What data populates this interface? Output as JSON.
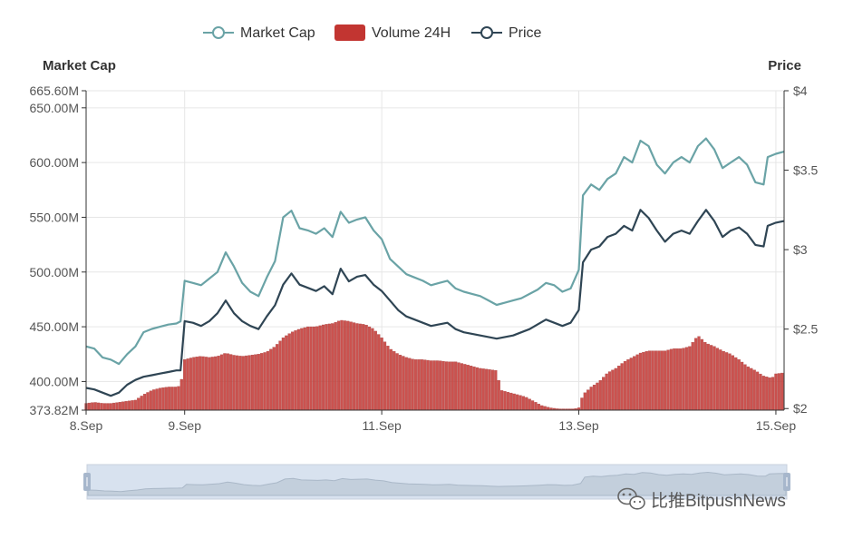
{
  "chart_data": {
    "type": "line",
    "title": "",
    "legend": {
      "placement": "top-center",
      "items": [
        {
          "name": "Market Cap",
          "kind": "line-circle",
          "color": "#6aa3a6"
        },
        {
          "name": "Volume 24H",
          "kind": "rect",
          "color": "#c23531"
        },
        {
          "name": "Price",
          "kind": "line-circle",
          "color": "#2f4554"
        }
      ]
    },
    "x_axis": {
      "unit": "hours since 8.Sep 00:00",
      "range": [
        0,
        170
      ],
      "ticks": [
        {
          "value": 0,
          "label": "8.Sep"
        },
        {
          "value": 24,
          "label": "9.Sep"
        },
        {
          "value": 72,
          "label": "11.Sep"
        },
        {
          "value": 120,
          "label": "13.Sep"
        },
        {
          "value": 168,
          "label": "15.Sep"
        }
      ]
    },
    "y_axis_left": {
      "name": "Market Cap",
      "range": [
        373.82,
        665.6
      ],
      "ticks": [
        {
          "value": 373.82,
          "label": "373.82M"
        },
        {
          "value": 400,
          "label": "400.00M"
        },
        {
          "value": 450,
          "label": "450.00M"
        },
        {
          "value": 500,
          "label": "500.00M"
        },
        {
          "value": 550,
          "label": "550.00M"
        },
        {
          "value": 600,
          "label": "600.00M"
        },
        {
          "value": 650,
          "label": "650.00M"
        },
        {
          "value": 665.6,
          "label": "665.60M"
        }
      ]
    },
    "y_axis_right": {
      "name": "Price",
      "range": [
        1.99,
        4.0
      ],
      "ticks": [
        {
          "value": 2,
          "label": "$2"
        },
        {
          "value": 2.5,
          "label": "$2.5"
        },
        {
          "value": 3,
          "label": "$3"
        },
        {
          "value": 3.5,
          "label": "$3.5"
        },
        {
          "value": 4,
          "label": "$4"
        }
      ]
    },
    "grid": true,
    "series": [
      {
        "name": "Market Cap",
        "axis": "left",
        "color": "#6aa3a6",
        "points": [
          [
            0,
            432
          ],
          [
            2,
            430
          ],
          [
            4,
            422
          ],
          [
            6,
            420
          ],
          [
            8,
            416
          ],
          [
            10,
            425
          ],
          [
            12,
            432
          ],
          [
            14,
            445
          ],
          [
            16,
            448
          ],
          [
            18,
            450
          ],
          [
            20,
            452
          ],
          [
            22,
            453
          ],
          [
            23,
            455
          ],
          [
            24,
            492
          ],
          [
            26,
            490
          ],
          [
            28,
            488
          ],
          [
            30,
            494
          ],
          [
            32,
            500
          ],
          [
            34,
            518
          ],
          [
            36,
            505
          ],
          [
            38,
            490
          ],
          [
            40,
            482
          ],
          [
            42,
            478
          ],
          [
            44,
            495
          ],
          [
            46,
            510
          ],
          [
            48,
            550
          ],
          [
            50,
            556
          ],
          [
            52,
            540
          ],
          [
            54,
            538
          ],
          [
            56,
            535
          ],
          [
            58,
            540
          ],
          [
            60,
            532
          ],
          [
            62,
            555
          ],
          [
            64,
            545
          ],
          [
            66,
            548
          ],
          [
            68,
            550
          ],
          [
            70,
            538
          ],
          [
            72,
            530
          ],
          [
            74,
            512
          ],
          [
            76,
            505
          ],
          [
            78,
            498
          ],
          [
            80,
            495
          ],
          [
            82,
            492
          ],
          [
            84,
            488
          ],
          [
            86,
            490
          ],
          [
            88,
            492
          ],
          [
            90,
            485
          ],
          [
            92,
            482
          ],
          [
            94,
            480
          ],
          [
            96,
            478
          ],
          [
            98,
            474
          ],
          [
            100,
            470
          ],
          [
            102,
            472
          ],
          [
            104,
            474
          ],
          [
            106,
            476
          ],
          [
            108,
            480
          ],
          [
            110,
            484
          ],
          [
            112,
            490
          ],
          [
            114,
            488
          ],
          [
            116,
            482
          ],
          [
            118,
            485
          ],
          [
            120,
            502
          ],
          [
            121,
            570
          ],
          [
            123,
            580
          ],
          [
            125,
            575
          ],
          [
            127,
            585
          ],
          [
            129,
            590
          ],
          [
            131,
            605
          ],
          [
            133,
            600
          ],
          [
            135,
            620
          ],
          [
            137,
            615
          ],
          [
            139,
            598
          ],
          [
            141,
            590
          ],
          [
            143,
            600
          ],
          [
            145,
            605
          ],
          [
            147,
            600
          ],
          [
            149,
            615
          ],
          [
            151,
            622
          ],
          [
            153,
            612
          ],
          [
            155,
            595
          ],
          [
            157,
            600
          ],
          [
            159,
            605
          ],
          [
            161,
            598
          ],
          [
            163,
            582
          ],
          [
            165,
            580
          ],
          [
            166,
            605
          ],
          [
            168,
            608
          ],
          [
            170,
            610
          ]
        ]
      },
      {
        "name": "Price",
        "axis": "right",
        "color": "#2f4554",
        "points": [
          [
            0,
            2.13
          ],
          [
            2,
            2.12
          ],
          [
            4,
            2.1
          ],
          [
            6,
            2.08
          ],
          [
            8,
            2.1
          ],
          [
            10,
            2.15
          ],
          [
            12,
            2.18
          ],
          [
            14,
            2.2
          ],
          [
            16,
            2.21
          ],
          [
            18,
            2.22
          ],
          [
            20,
            2.23
          ],
          [
            22,
            2.24
          ],
          [
            23,
            2.24
          ],
          [
            24,
            2.55
          ],
          [
            26,
            2.54
          ],
          [
            28,
            2.52
          ],
          [
            30,
            2.55
          ],
          [
            32,
            2.6
          ],
          [
            34,
            2.68
          ],
          [
            36,
            2.6
          ],
          [
            38,
            2.55
          ],
          [
            40,
            2.52
          ],
          [
            42,
            2.5
          ],
          [
            44,
            2.58
          ],
          [
            46,
            2.65
          ],
          [
            48,
            2.78
          ],
          [
            50,
            2.85
          ],
          [
            52,
            2.78
          ],
          [
            54,
            2.76
          ],
          [
            56,
            2.74
          ],
          [
            58,
            2.77
          ],
          [
            60,
            2.72
          ],
          [
            62,
            2.88
          ],
          [
            64,
            2.8
          ],
          [
            66,
            2.83
          ],
          [
            68,
            2.84
          ],
          [
            70,
            2.78
          ],
          [
            72,
            2.74
          ],
          [
            74,
            2.68
          ],
          [
            76,
            2.62
          ],
          [
            78,
            2.58
          ],
          [
            80,
            2.56
          ],
          [
            82,
            2.54
          ],
          [
            84,
            2.52
          ],
          [
            86,
            2.53
          ],
          [
            88,
            2.54
          ],
          [
            90,
            2.5
          ],
          [
            92,
            2.48
          ],
          [
            94,
            2.47
          ],
          [
            96,
            2.46
          ],
          [
            98,
            2.45
          ],
          [
            100,
            2.44
          ],
          [
            102,
            2.45
          ],
          [
            104,
            2.46
          ],
          [
            106,
            2.48
          ],
          [
            108,
            2.5
          ],
          [
            110,
            2.53
          ],
          [
            112,
            2.56
          ],
          [
            114,
            2.54
          ],
          [
            116,
            2.52
          ],
          [
            118,
            2.54
          ],
          [
            120,
            2.62
          ],
          [
            121,
            2.92
          ],
          [
            123,
            3.0
          ],
          [
            125,
            3.02
          ],
          [
            127,
            3.08
          ],
          [
            129,
            3.1
          ],
          [
            131,
            3.15
          ],
          [
            133,
            3.12
          ],
          [
            135,
            3.25
          ],
          [
            137,
            3.2
          ],
          [
            139,
            3.12
          ],
          [
            141,
            3.05
          ],
          [
            143,
            3.1
          ],
          [
            145,
            3.12
          ],
          [
            147,
            3.1
          ],
          [
            149,
            3.18
          ],
          [
            151,
            3.25
          ],
          [
            153,
            3.18
          ],
          [
            155,
            3.08
          ],
          [
            157,
            3.12
          ],
          [
            159,
            3.14
          ],
          [
            161,
            3.1
          ],
          [
            163,
            3.03
          ],
          [
            165,
            3.02
          ],
          [
            166,
            3.15
          ],
          [
            168,
            3.17
          ],
          [
            170,
            3.18
          ]
        ]
      },
      {
        "name": "Volume 24H",
        "axis": "left",
        "color": "#c23531",
        "kind": "bar",
        "points": [
          [
            0,
            380
          ],
          [
            2,
            381
          ],
          [
            4,
            380
          ],
          [
            6,
            380
          ],
          [
            8,
            381
          ],
          [
            10,
            382
          ],
          [
            12,
            383
          ],
          [
            14,
            388
          ],
          [
            16,
            392
          ],
          [
            18,
            394
          ],
          [
            20,
            395
          ],
          [
            22,
            395
          ],
          [
            23,
            396
          ],
          [
            24,
            420
          ],
          [
            26,
            422
          ],
          [
            28,
            423
          ],
          [
            30,
            422
          ],
          [
            32,
            423
          ],
          [
            34,
            426
          ],
          [
            36,
            424
          ],
          [
            38,
            423
          ],
          [
            40,
            424
          ],
          [
            42,
            425
          ],
          [
            44,
            427
          ],
          [
            46,
            432
          ],
          [
            48,
            440
          ],
          [
            50,
            445
          ],
          [
            52,
            448
          ],
          [
            54,
            450
          ],
          [
            56,
            450
          ],
          [
            58,
            452
          ],
          [
            60,
            453
          ],
          [
            62,
            456
          ],
          [
            64,
            455
          ],
          [
            66,
            453
          ],
          [
            68,
            452
          ],
          [
            70,
            448
          ],
          [
            72,
            440
          ],
          [
            74,
            430
          ],
          [
            76,
            425
          ],
          [
            78,
            422
          ],
          [
            80,
            420
          ],
          [
            82,
            420
          ],
          [
            84,
            419
          ],
          [
            86,
            419
          ],
          [
            88,
            418
          ],
          [
            90,
            418
          ],
          [
            92,
            416
          ],
          [
            94,
            414
          ],
          [
            96,
            412
          ],
          [
            98,
            411
          ],
          [
            100,
            410
          ],
          [
            101,
            392
          ],
          [
            103,
            390
          ],
          [
            105,
            388
          ],
          [
            107,
            386
          ],
          [
            109,
            382
          ],
          [
            111,
            378
          ],
          [
            113,
            376
          ],
          [
            115,
            375
          ],
          [
            117,
            375
          ],
          [
            119,
            375
          ],
          [
            120,
            376
          ],
          [
            121,
            388
          ],
          [
            123,
            395
          ],
          [
            125,
            400
          ],
          [
            127,
            408
          ],
          [
            129,
            412
          ],
          [
            131,
            418
          ],
          [
            133,
            422
          ],
          [
            135,
            426
          ],
          [
            137,
            428
          ],
          [
            139,
            428
          ],
          [
            141,
            428
          ],
          [
            143,
            430
          ],
          [
            145,
            430
          ],
          [
            147,
            432
          ],
          [
            149,
            442
          ],
          [
            151,
            435
          ],
          [
            153,
            432
          ],
          [
            155,
            428
          ],
          [
            157,
            425
          ],
          [
            159,
            420
          ],
          [
            161,
            414
          ],
          [
            163,
            410
          ],
          [
            165,
            405
          ],
          [
            167,
            403
          ],
          [
            168,
            407
          ],
          [
            170,
            408
          ]
        ]
      }
    ],
    "data_zoom": {
      "start_percent": 0,
      "end_percent": 100
    }
  },
  "watermark": {
    "text": "比推BitpushNews",
    "icon": "wechat-icon"
  }
}
